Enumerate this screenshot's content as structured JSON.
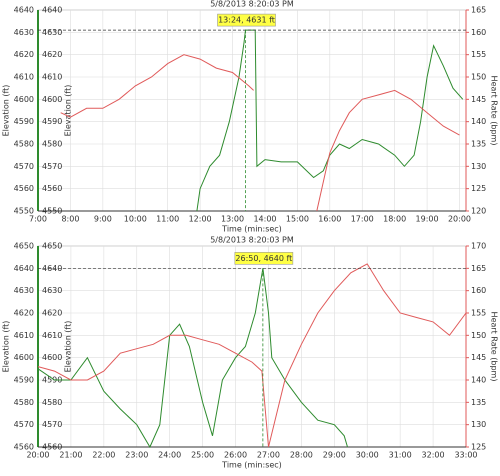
{
  "chart_data": [
    {
      "type": "line",
      "title": "5/8/2013 8:20:03 PM",
      "x_label": "Time (min:sec)",
      "y_label": "Elevation (ft)",
      "y2_label": "Heart Rate (bpm)",
      "xlim": [
        7,
        20.2
      ],
      "xticks": [
        {
          "value": 7,
          "label": "7:00"
        },
        {
          "value": 8,
          "label": "8:00"
        },
        {
          "value": 9,
          "label": "9:00"
        },
        {
          "value": 10,
          "label": "10:00"
        },
        {
          "value": 11,
          "label": "11:00"
        },
        {
          "value": 12,
          "label": "12:00"
        },
        {
          "value": 13,
          "label": "13:00"
        },
        {
          "value": 14,
          "label": "14:00"
        },
        {
          "value": 15,
          "label": "15:00"
        },
        {
          "value": 16,
          "label": "16:00"
        },
        {
          "value": 17,
          "label": "17:00"
        },
        {
          "value": 18,
          "label": "18:00"
        },
        {
          "value": 19,
          "label": "19:00"
        },
        {
          "value": 20,
          "label": "20:00"
        }
      ],
      "ylim": [
        4550,
        4640
      ],
      "yticks": [
        4550,
        4560,
        4570,
        4580,
        4590,
        4600,
        4610,
        4620,
        4630,
        4640
      ],
      "y2lim": [
        120,
        165
      ],
      "y2ticks": [
        120,
        125,
        130,
        135,
        140,
        145,
        150,
        155,
        160,
        165
      ],
      "grid": true,
      "annotation": {
        "text": "13:24, 4631 ft",
        "x": 13.4,
        "y": 4631
      },
      "series": [
        {
          "name": "Elevation",
          "color": "#2e8b2e",
          "x": [
            11.9,
            12.0,
            12.3,
            12.6,
            12.9,
            13.2,
            13.35,
            13.4,
            13.7,
            13.75,
            14.0,
            14.5,
            15.0,
            15.5,
            15.8,
            16.0,
            16.3,
            16.6,
            17.0,
            17.5,
            18.0,
            18.3,
            18.6,
            18.8,
            19.0,
            19.2,
            19.5,
            19.8,
            20.1
          ],
          "values": [
            4550,
            4560,
            4570,
            4575,
            4590,
            4610,
            4625,
            4631,
            4631,
            4570,
            4573,
            4572,
            4572,
            4565,
            4568,
            4575,
            4580,
            4578,
            4582,
            4580,
            4575,
            4570,
            4575,
            4590,
            4610,
            4624,
            4615,
            4605,
            4600
          ]
        },
        {
          "name": "Heart Rate",
          "color": "#e05a5a",
          "axis": "y2",
          "x": [
            7.7,
            8.0,
            8.5,
            9.0,
            9.5,
            10.0,
            10.5,
            11.0,
            11.5,
            12.0,
            12.5,
            13.0,
            13.5,
            13.65,
            14.5,
            15.6,
            16.0,
            16.3,
            16.6,
            17.0,
            17.5,
            18.0,
            18.5,
            19.0,
            19.5,
            20.0
          ],
          "values": [
            142,
            141,
            143,
            143,
            145,
            148,
            150,
            153,
            155,
            154,
            152,
            151,
            148,
            147,
            null,
            120,
            133,
            138,
            142,
            145,
            146,
            147,
            145,
            142,
            139,
            137
          ]
        }
      ]
    },
    {
      "type": "line",
      "title": "5/8/2013 8:20:03 PM",
      "x_label": "Time (min:sec)",
      "y_label": "Elevation (ft)",
      "y2_label": "Heart Rate (bpm)",
      "xlim": [
        20,
        33
      ],
      "xticks": [
        {
          "value": 20,
          "label": "20:00"
        },
        {
          "value": 21,
          "label": "21:00"
        },
        {
          "value": 22,
          "label": "22:00"
        },
        {
          "value": 23,
          "label": "23:00"
        },
        {
          "value": 24,
          "label": "24:00"
        },
        {
          "value": 25,
          "label": "25:00"
        },
        {
          "value": 26,
          "label": "26:00"
        },
        {
          "value": 27,
          "label": "27:00"
        },
        {
          "value": 28,
          "label": "28:00"
        },
        {
          "value": 29,
          "label": "29:00"
        },
        {
          "value": 30,
          "label": "30:00"
        },
        {
          "value": 31,
          "label": "31:00"
        },
        {
          "value": 32,
          "label": "32:00"
        },
        {
          "value": 33,
          "label": "33:00"
        }
      ],
      "ylim": [
        4560,
        4650
      ],
      "yticks": [
        4560,
        4570,
        4580,
        4590,
        4600,
        4610,
        4620,
        4630,
        4640,
        4650
      ],
      "y2lim": [
        125,
        170
      ],
      "y2ticks": [
        125,
        130,
        135,
        140,
        145,
        150,
        155,
        160,
        165,
        170
      ],
      "grid": true,
      "annotation": {
        "text": "26:50, 4640 ft",
        "x": 26.83,
        "y": 4640
      },
      "series": [
        {
          "name": "Elevation",
          "color": "#2e8b2e",
          "x": [
            20.0,
            20.5,
            21.0,
            21.5,
            22.0,
            22.5,
            23.0,
            23.4,
            23.7,
            24.0,
            24.3,
            24.6,
            25.0,
            25.3,
            25.6,
            26.0,
            26.3,
            26.6,
            26.83,
            27.0,
            27.1,
            27.5,
            28.0,
            28.5,
            29.0,
            29.3,
            29.4
          ],
          "values": [
            4595,
            4590,
            4590,
            4600,
            4585,
            4577,
            4570,
            4560,
            4570,
            4610,
            4615,
            4605,
            4580,
            4565,
            4590,
            4600,
            4605,
            4620,
            4640,
            4620,
            4600,
            4590,
            4580,
            4572,
            4570,
            4565,
            4560
          ]
        },
        {
          "name": "Heart Rate",
          "color": "#e05a5a",
          "axis": "y2",
          "x": [
            20.0,
            20.5,
            21.0,
            21.5,
            22.0,
            22.5,
            23.0,
            23.5,
            24.0,
            24.5,
            25.0,
            25.5,
            26.0,
            26.5,
            26.8,
            27.0,
            27.5,
            28.0,
            28.5,
            29.0,
            29.5,
            30.0,
            30.5,
            31.0,
            31.5,
            32.0,
            32.5,
            33.0
          ],
          "values": [
            143,
            142,
            140,
            140,
            142,
            146,
            147,
            148,
            150,
            150,
            149,
            148,
            146,
            144,
            142,
            125,
            140,
            148,
            155,
            160,
            164,
            166,
            160,
            155,
            154,
            153,
            150,
            155
          ]
        }
      ]
    }
  ]
}
